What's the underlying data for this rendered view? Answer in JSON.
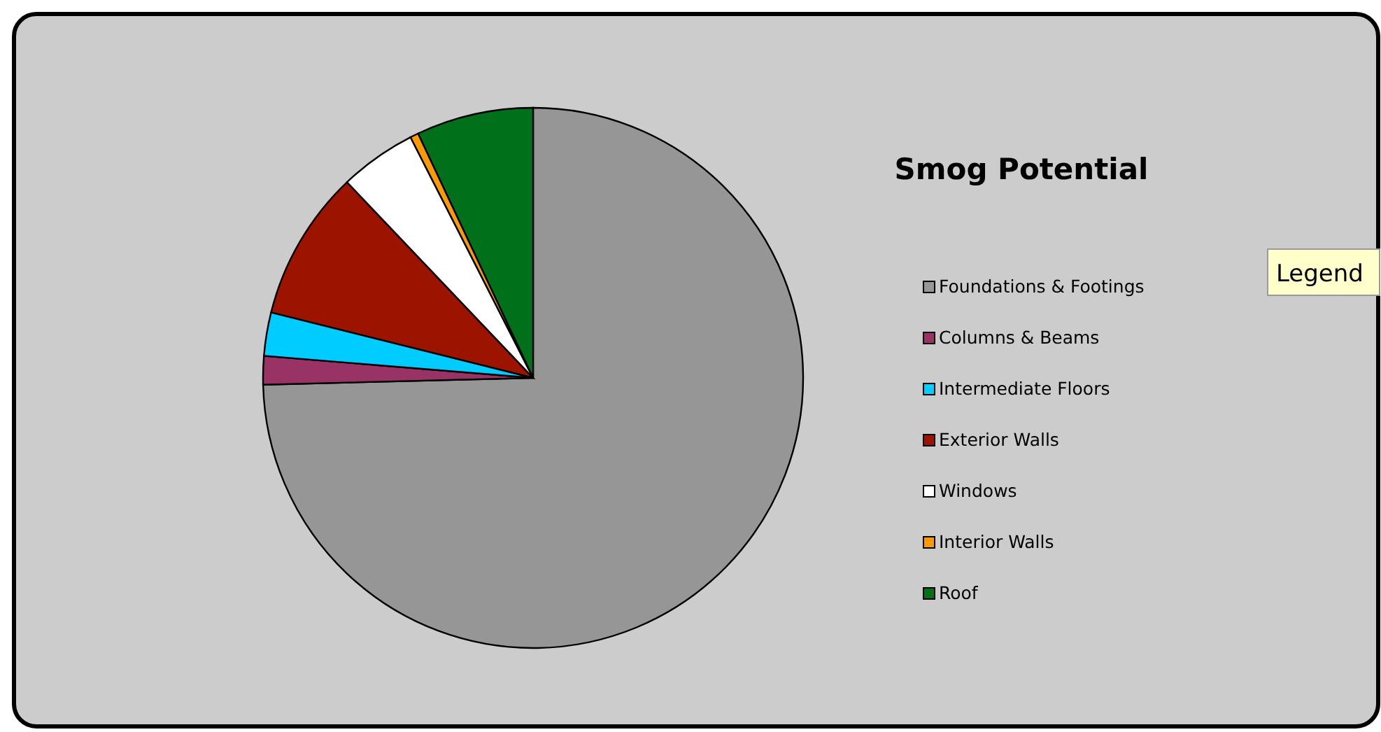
{
  "chart_data": {
    "type": "pie",
    "title": "Smog Potential",
    "categories": [
      "Foundations & Footings",
      "Columns & Beams",
      "Intermediate Floors",
      "Exterior Walls",
      "Windows",
      "Interior Walls",
      "Roof"
    ],
    "values": [
      74.6,
      1.7,
      2.6,
      9,
      4.6,
      0.5,
      7
    ],
    "colors": [
      "#969696",
      "#993366",
      "#00ccff",
      "#9c1400",
      "#ffffff",
      "#ff9900",
      "#00701a"
    ],
    "legend": "right",
    "annotations": [
      "Legend"
    ]
  }
}
